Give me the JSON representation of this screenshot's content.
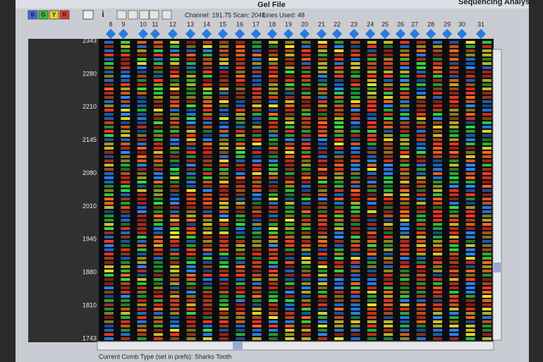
{
  "window": {
    "title": "Gel File",
    "app_title": "Sequencing Analysis"
  },
  "toolbar": {
    "buttons": [
      "B",
      "G",
      "Y",
      "R"
    ],
    "info_icon": "i",
    "channel": "Channel: 191.75 Scan: 2048",
    "lines_used": "Lines Used: 48"
  },
  "lanes": [
    "8",
    "9",
    "10",
    "11",
    "12",
    "13",
    "14",
    "15",
    "16",
    "17",
    "18",
    "19",
    "20",
    "21",
    "22",
    "23",
    "24",
    "25",
    "26",
    "27",
    "28",
    "29",
    "30",
    "31"
  ],
  "scan_labels": [
    2343,
    2280,
    2210,
    2145,
    2080,
    2010,
    1945,
    1880,
    1810,
    1743
  ],
  "status": "Current Comb Type (set in prefs): Sharks Tooth"
}
